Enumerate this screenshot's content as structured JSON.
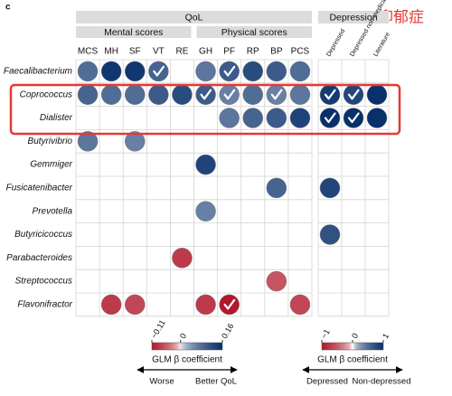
{
  "chart_data": {
    "type": "dotmatrix",
    "panel_label": "c",
    "annotation": "抑郁症",
    "rows": [
      "Faecalibacterium",
      "Coprococcus",
      "Dialister",
      "Butyrivibrio",
      "Gemmiger",
      "Fusicatenibacter",
      "Prevotella",
      "Butyricicoccus",
      "Parabacteroides",
      "Streptococcus",
      "Flavonifractor"
    ],
    "panels": [
      {
        "title": "QoL",
        "column_groups": [
          {
            "name": "Mental scores",
            "columns": [
              "MCS",
              "MH",
              "SF",
              "VT",
              "RE"
            ]
          },
          {
            "name": "Physical scores",
            "columns": [
              "GH",
              "PF",
              "RP",
              "BP",
              "PCS"
            ]
          }
        ],
        "values": [
          [
            0.08,
            0.15,
            0.15,
            0.09,
            null,
            0.07,
            0.1,
            0.12,
            0.1,
            0.08
          ],
          [
            0.09,
            0.08,
            0.08,
            0.1,
            0.12,
            0.1,
            0.06,
            0.08,
            0.06,
            0.07
          ],
          [
            null,
            null,
            null,
            null,
            null,
            null,
            0.07,
            0.09,
            0.1,
            0.13
          ],
          [
            0.07,
            null,
            0.06,
            null,
            null,
            null,
            null,
            null,
            null,
            null
          ],
          [
            null,
            null,
            null,
            null,
            null,
            0.13,
            null,
            null,
            null,
            null
          ],
          [
            null,
            null,
            null,
            null,
            null,
            null,
            null,
            null,
            0.09,
            null
          ],
          [
            null,
            null,
            null,
            null,
            null,
            0.06,
            null,
            null,
            null,
            null
          ],
          [
            null,
            null,
            null,
            null,
            null,
            null,
            null,
            null,
            null,
            null
          ],
          [
            null,
            null,
            null,
            null,
            -0.08,
            null,
            null,
            null,
            null,
            null
          ],
          [
            null,
            null,
            null,
            null,
            null,
            null,
            null,
            null,
            -0.06,
            null
          ],
          [
            null,
            -0.08,
            -0.07,
            null,
            null,
            -0.08,
            -0.11,
            null,
            null,
            -0.07
          ]
        ],
        "significant": [
          [
            false,
            false,
            false,
            true,
            false,
            false,
            true,
            false,
            false,
            false
          ],
          [
            false,
            false,
            false,
            false,
            false,
            true,
            true,
            false,
            true,
            false
          ],
          [
            false,
            false,
            false,
            false,
            false,
            false,
            false,
            false,
            false,
            false
          ],
          [
            false,
            false,
            false,
            false,
            false,
            false,
            false,
            false,
            false,
            false
          ],
          [
            false,
            false,
            false,
            false,
            false,
            false,
            false,
            false,
            false,
            false
          ],
          [
            false,
            false,
            false,
            false,
            false,
            false,
            false,
            false,
            false,
            false
          ],
          [
            false,
            false,
            false,
            false,
            false,
            false,
            false,
            false,
            false,
            false
          ],
          [
            false,
            false,
            false,
            false,
            false,
            false,
            false,
            false,
            false,
            false
          ],
          [
            false,
            false,
            false,
            false,
            false,
            false,
            false,
            false,
            false,
            false
          ],
          [
            false,
            false,
            false,
            false,
            false,
            false,
            false,
            false,
            false,
            false
          ],
          [
            false,
            false,
            false,
            false,
            false,
            false,
            true,
            false,
            false,
            false
          ]
        ],
        "colors": [
          "#b2182b",
          "#ffffff",
          "#08306b"
        ],
        "colorbar": {
          "title": "GLM β coefficient",
          "clim": [
            -0.11,
            0.16
          ],
          "cticks": [
            {
              "value": -0.11,
              "label": "−0.11"
            },
            0,
            0.16
          ],
          "low_label": "Worse",
          "high_label": "Better QoL"
        }
      },
      {
        "title": "Depression",
        "columns": [
          "Depressed",
          "Depressed non-medicated",
          "Literature"
        ],
        "values": [
          [
            null,
            null,
            null
          ],
          [
            0.9,
            0.8,
            1
          ],
          [
            1,
            1,
            1
          ],
          [
            null,
            null,
            null
          ],
          [
            null,
            null,
            null
          ],
          [
            0.8,
            null,
            null
          ],
          [
            null,
            null,
            null
          ],
          [
            0.7,
            null,
            null
          ],
          [
            null,
            null,
            null
          ],
          [
            null,
            null,
            null
          ],
          [
            null,
            null,
            null
          ]
        ],
        "significant": [
          [
            false,
            false,
            false
          ],
          [
            true,
            true,
            false
          ],
          [
            true,
            true,
            false
          ],
          [
            false,
            false,
            false
          ],
          [
            false,
            false,
            false
          ],
          [
            false,
            false,
            false
          ],
          [
            false,
            false,
            false
          ],
          [
            false,
            false,
            false
          ],
          [
            false,
            false,
            false
          ],
          [
            false,
            false,
            false
          ],
          [
            false,
            false,
            false
          ]
        ],
        "colors": [
          "#b2182b",
          "#ffffff",
          "#08306b"
        ],
        "colorbar": {
          "title": "GLM β coefficient",
          "clim": [
            -1,
            1
          ],
          "cticks": [
            {
              "value": -1,
              "label": "−1"
            },
            0,
            1
          ],
          "low_label": "Depressed",
          "high_label": "Non-depressed"
        }
      }
    ]
  }
}
